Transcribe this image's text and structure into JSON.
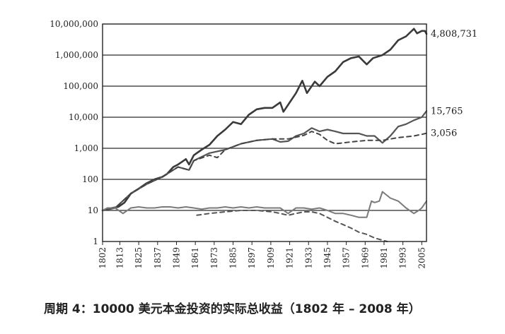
{
  "caption": "周期 4：10000 美元本金投资的实际总收益（1802 年 – 2008 年）",
  "chart_data": {
    "type": "line",
    "title": "",
    "xlabel": "",
    "ylabel": "",
    "x_scale": "linear",
    "y_scale": "log",
    "xlim": [
      1802,
      2008
    ],
    "ylim": [
      1,
      10000000
    ],
    "grid": true,
    "legend": "none",
    "x_ticks": [
      "1802",
      "1813",
      "1825",
      "1837",
      "1849",
      "1861",
      "1873",
      "1885",
      "1897",
      "1909",
      "1921",
      "1933",
      "1945",
      "1957",
      "1969",
      "1981",
      "1993",
      "2005"
    ],
    "y_ticks": [
      {
        "value": 1,
        "label": "1"
      },
      {
        "value": 10,
        "label": "10"
      },
      {
        "value": 100,
        "label": "100"
      },
      {
        "value": 1000,
        "label": "1,000"
      },
      {
        "value": 10000,
        "label": "10,000"
      },
      {
        "value": 100000,
        "label": "100,000"
      },
      {
        "value": 1000000,
        "label": "1,000,000"
      },
      {
        "value": 10000000,
        "label": "10,000,000"
      }
    ],
    "end_labels": [
      {
        "text": "4,808,731",
        "value": 4808731
      },
      {
        "text": "15,765",
        "value": 15765
      },
      {
        "text": "3,056",
        "value": 3056
      }
    ],
    "series": [
      {
        "color": "#3a3a3a",
        "dash": false,
        "width": 2.6,
        "x": [
          1802,
          1808,
          1812,
          1816,
          1820,
          1825,
          1830,
          1835,
          1840,
          1843,
          1847,
          1850,
          1855,
          1857,
          1860,
          1865,
          1870,
          1875,
          1880,
          1885,
          1890,
          1895,
          1900,
          1905,
          1910,
          1915,
          1917,
          1920,
          1925,
          1929,
          1932,
          1937,
          1940,
          1945,
          1950,
          1955,
          1960,
          1965,
          1970,
          1974,
          1980,
          1985,
          1990,
          1995,
          2000,
          2002,
          2005,
          2007,
          2008
        ],
        "y": [
          10,
          12,
          13,
          18,
          35,
          50,
          75,
          100,
          120,
          150,
          250,
          300,
          450,
          300,
          600,
          900,
          1300,
          2500,
          4000,
          7000,
          6000,
          12000,
          18000,
          20000,
          20000,
          30000,
          15000,
          25000,
          60000,
          150000,
          60000,
          140000,
          100000,
          200000,
          300000,
          600000,
          800000,
          900000,
          500000,
          800000,
          1000000,
          1500000,
          3000000,
          4000000,
          7000000,
          5000000,
          6000000,
          6000000,
          4808731
        ]
      },
      {
        "color": "#555555",
        "dash": false,
        "width": 2.2,
        "x": [
          1802,
          1810,
          1820,
          1830,
          1840,
          1850,
          1857,
          1860,
          1870,
          1880,
          1890,
          1900,
          1910,
          1915,
          1920,
          1925,
          1930,
          1935,
          1940,
          1945,
          1950,
          1955,
          1960,
          1965,
          1970,
          1975,
          1980,
          1985,
          1990,
          1995,
          2000,
          2005,
          2008
        ],
        "y": [
          10,
          12,
          35,
          70,
          120,
          250,
          200,
          400,
          700,
          900,
          1400,
          1800,
          2000,
          1600,
          1700,
          2500,
          3000,
          4500,
          3500,
          4000,
          3500,
          3000,
          3000,
          3000,
          2500,
          2500,
          1500,
          2500,
          5000,
          6000,
          8000,
          10000,
          15765
        ]
      },
      {
        "color": "#444444",
        "dash": true,
        "width": 2.0,
        "x": [
          1802,
          1810,
          1820,
          1830,
          1840,
          1850,
          1857,
          1860,
          1870,
          1875,
          1880,
          1890,
          1900,
          1910,
          1920,
          1930,
          1935,
          1940,
          1945,
          1950,
          1955,
          1960,
          1970,
          1980,
          1985,
          1990,
          2000,
          2005,
          2008
        ],
        "y": [
          10,
          12,
          35,
          70,
          120,
          250,
          200,
          400,
          600,
          500,
          900,
          1400,
          1800,
          2000,
          2000,
          2600,
          3500,
          2800,
          1800,
          1400,
          1500,
          1600,
          1800,
          1800,
          2000,
          2200,
          2500,
          2800,
          3056
        ]
      },
      {
        "color": "#7a7a7a",
        "dash": false,
        "width": 2.0,
        "x": [
          1802,
          1805,
          1810,
          1815,
          1820,
          1825,
          1830,
          1835,
          1840,
          1845,
          1850,
          1855,
          1860,
          1865,
          1870,
          1875,
          1880,
          1885,
          1890,
          1895,
          1900,
          1905,
          1910,
          1915,
          1920,
          1925,
          1930,
          1935,
          1940,
          1945,
          1950,
          1955,
          1960,
          1965,
          1970,
          1973,
          1975,
          1978,
          1980,
          1985,
          1990,
          1995,
          2000,
          2003,
          2005,
          2008
        ],
        "y": [
          10,
          12,
          12,
          8,
          12,
          13,
          12,
          12,
          13,
          13,
          12,
          13,
          12,
          11,
          12,
          12,
          13,
          12,
          13,
          12,
          13,
          12,
          12,
          12,
          8,
          12,
          12,
          11,
          12,
          10,
          8,
          8,
          7,
          6,
          6,
          20,
          18,
          20,
          40,
          25,
          20,
          12,
          8,
          10,
          12,
          20
        ]
      },
      {
        "color": "#555555",
        "dash": true,
        "width": 2.0,
        "x": [
          1862,
          1870,
          1880,
          1890,
          1900,
          1910,
          1915,
          1920,
          1925,
          1930,
          1935,
          1940,
          1945,
          1950,
          1955,
          1960,
          1965,
          1970,
          1975,
          1980,
          1983
        ],
        "y": [
          7,
          8,
          9,
          10,
          10,
          9,
          8,
          7,
          8,
          9,
          9,
          8,
          6,
          4.5,
          3.5,
          2.7,
          2,
          1.7,
          1.3,
          1.1,
          1
        ]
      }
    ]
  }
}
